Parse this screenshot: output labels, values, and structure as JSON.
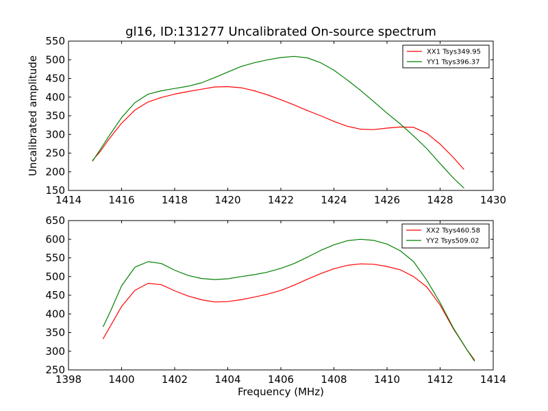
{
  "figure": {
    "title": "gl16, ID:131277 Uncalibrated On-source spectrum"
  },
  "colors": {
    "red": "#ff0000",
    "green": "#008000"
  },
  "chart_data": [
    {
      "type": "line",
      "title": "gl16, ID:131277 Uncalibrated On-source spectrum",
      "xlabel": "",
      "ylabel": "Uncalibrated amplitude",
      "xlim": [
        1414,
        1430
      ],
      "ylim": [
        150,
        550
      ],
      "xticks": [
        1414,
        1416,
        1418,
        1420,
        1422,
        1424,
        1426,
        1428,
        1430
      ],
      "yticks": [
        150,
        200,
        250,
        300,
        350,
        400,
        450,
        500,
        550
      ],
      "legend": "top-right",
      "grid": false,
      "series": [
        {
          "name": "XX1 Tsys349.95",
          "color": "#ff0000",
          "x": [
            1414.9,
            1415.2,
            1415.5,
            1416.0,
            1416.5,
            1417.0,
            1417.5,
            1418.0,
            1418.5,
            1419.0,
            1419.5,
            1420.0,
            1420.5,
            1421.0,
            1421.5,
            1422.0,
            1422.5,
            1423.0,
            1423.5,
            1424.0,
            1424.5,
            1425.0,
            1425.5,
            1426.0,
            1426.5,
            1427.0,
            1427.5,
            1428.0,
            1428.5,
            1428.9
          ],
          "y": [
            230,
            255,
            285,
            330,
            365,
            387,
            399,
            408,
            415,
            421,
            427,
            428,
            425,
            417,
            406,
            393,
            379,
            364,
            350,
            335,
            322,
            314,
            313,
            317,
            320,
            319,
            303,
            274,
            238,
            206
          ]
        },
        {
          "name": "YY1 Tsys396.37",
          "color": "#008000",
          "x": [
            1414.9,
            1415.2,
            1415.5,
            1416.0,
            1416.5,
            1417.0,
            1417.5,
            1418.0,
            1418.5,
            1419.0,
            1419.5,
            1420.0,
            1420.5,
            1421.0,
            1421.5,
            1422.0,
            1422.5,
            1423.0,
            1423.5,
            1424.0,
            1424.5,
            1425.0,
            1425.5,
            1426.0,
            1426.5,
            1427.0,
            1427.5,
            1428.0,
            1428.5,
            1428.9
          ],
          "y": [
            228,
            260,
            293,
            345,
            385,
            408,
            417,
            423,
            429,
            438,
            452,
            467,
            482,
            492,
            500,
            506,
            509,
            505,
            492,
            472,
            446,
            418,
            388,
            357,
            328,
            296,
            262,
            222,
            183,
            156
          ]
        }
      ]
    },
    {
      "type": "line",
      "title": "",
      "xlabel": "Frequency (MHz)",
      "ylabel": "",
      "xlim": [
        1398,
        1414
      ],
      "ylim": [
        250,
        650
      ],
      "xticks": [
        1398,
        1400,
        1402,
        1404,
        1406,
        1408,
        1410,
        1412,
        1414
      ],
      "yticks": [
        250,
        300,
        350,
        400,
        450,
        500,
        550,
        600,
        650
      ],
      "legend": "top-right",
      "grid": false,
      "series": [
        {
          "name": "XX2 Tsys460.58",
          "color": "#ff0000",
          "x": [
            1399.3,
            1399.6,
            1400.0,
            1400.5,
            1401.0,
            1401.5,
            1402.0,
            1402.5,
            1403.0,
            1403.5,
            1404.0,
            1404.5,
            1405.0,
            1405.5,
            1406.0,
            1406.5,
            1407.0,
            1407.5,
            1408.0,
            1408.5,
            1409.0,
            1409.5,
            1410.0,
            1410.5,
            1411.0,
            1411.5,
            1412.0,
            1412.5,
            1413.0,
            1413.3
          ],
          "y": [
            333,
            370,
            420,
            463,
            482,
            478,
            462,
            448,
            438,
            432,
            433,
            438,
            445,
            453,
            463,
            477,
            493,
            508,
            521,
            530,
            534,
            533,
            527,
            518,
            500,
            472,
            424,
            360,
            305,
            276
          ]
        },
        {
          "name": "YY2 Tsys509.02",
          "color": "#008000",
          "x": [
            1399.3,
            1399.6,
            1400.0,
            1400.5,
            1401.0,
            1401.5,
            1402.0,
            1402.5,
            1403.0,
            1403.5,
            1404.0,
            1404.5,
            1405.0,
            1405.5,
            1406.0,
            1406.5,
            1407.0,
            1407.5,
            1408.0,
            1408.5,
            1409.0,
            1409.5,
            1410.0,
            1410.5,
            1411.0,
            1411.5,
            1412.0,
            1412.5,
            1413.0,
            1413.3
          ],
          "y": [
            365,
            410,
            475,
            525,
            540,
            535,
            517,
            503,
            495,
            492,
            494,
            500,
            505,
            512,
            522,
            535,
            552,
            570,
            585,
            596,
            600,
            597,
            587,
            569,
            540,
            490,
            430,
            362,
            305,
            273
          ]
        }
      ]
    }
  ]
}
